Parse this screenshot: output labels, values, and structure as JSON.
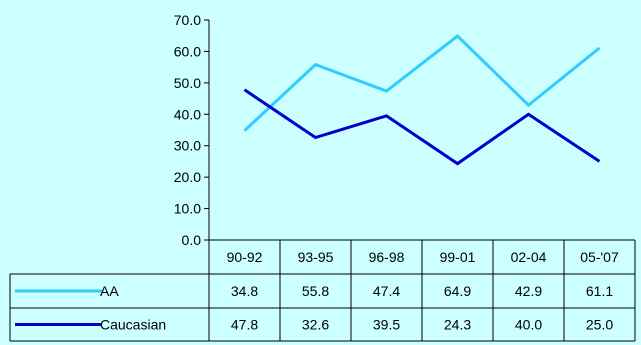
{
  "chart_data": {
    "type": "line",
    "categories": [
      "90-92",
      "93-95",
      "96-98",
      "99-01",
      "02-04",
      "05-'07"
    ],
    "series": [
      {
        "name": "AA",
        "values": [
          34.8,
          55.8,
          47.4,
          64.9,
          42.9,
          61.1
        ],
        "color": "#33CCFF"
      },
      {
        "name": "Caucasian",
        "values": [
          47.8,
          32.6,
          39.5,
          24.3,
          40.0,
          25.0
        ],
        "color": "#0000CC"
      }
    ],
    "value_labels": {
      "AA": [
        "34.8",
        "55.8",
        "47.4",
        "64.9",
        "42.9",
        "61.1"
      ],
      "Caucasian": [
        "47.8",
        "32.6",
        "39.5",
        "24.3",
        "40.0",
        "25.0"
      ]
    },
    "ylim": [
      0,
      70
    ],
    "yticks": [
      "0.0",
      "10.0",
      "20.0",
      "30.0",
      "40.0",
      "50.0",
      "60.0",
      "70.0"
    ],
    "grid": false,
    "legend": "data table",
    "background_color": "#CCFFFF"
  }
}
